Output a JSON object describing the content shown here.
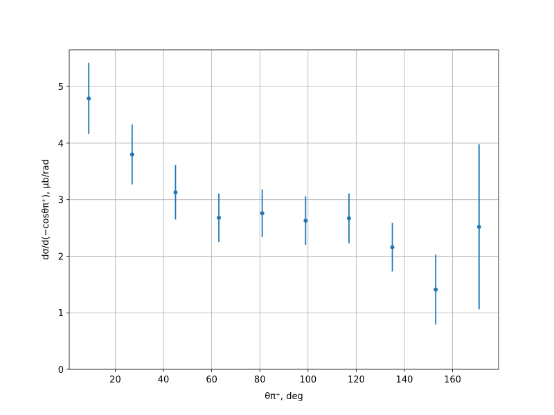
{
  "chart_data": {
    "type": "errorbar",
    "x": [
      9,
      27,
      45,
      63,
      81,
      99,
      117,
      135,
      153,
      171
    ],
    "values": [
      4.79,
      3.8,
      3.13,
      2.68,
      2.76,
      2.63,
      2.67,
      2.16,
      1.41,
      2.52
    ],
    "errors": [
      0.63,
      0.53,
      0.48,
      0.43,
      0.42,
      0.43,
      0.44,
      0.43,
      0.62,
      1.46
    ],
    "color": "#1f77b4",
    "xlabel": "θπ⁺, deg",
    "ylabel": "dσ/d(−cosθπ⁺), μb/rad",
    "xlim": [
      0.9,
      179.1
    ],
    "xticks": [
      20,
      40,
      60,
      80,
      100,
      120,
      140,
      160
    ],
    "ylim": [
      0,
      5.65
    ],
    "yticks": [
      0,
      1,
      2,
      3,
      4,
      5
    ],
    "grid": true
  }
}
